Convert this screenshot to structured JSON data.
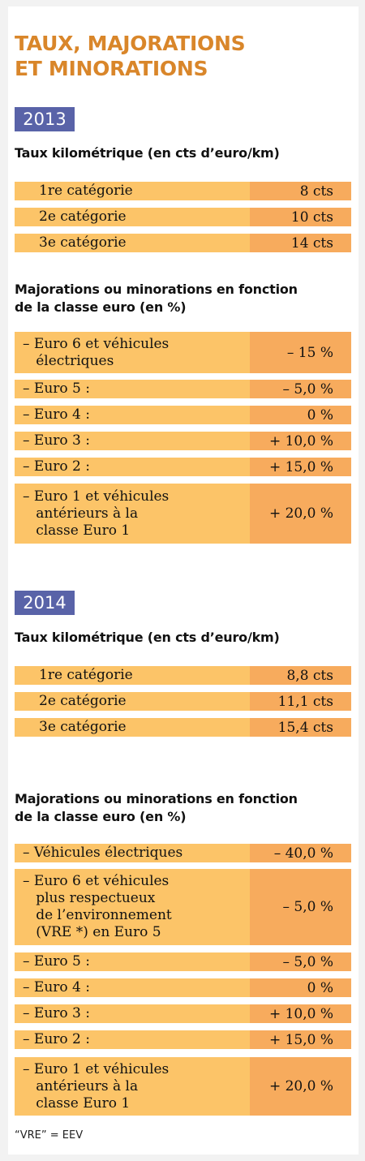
{
  "title": "TAUX, MAJORATIONS\nET MINORATIONS",
  "sections": [
    {
      "year": "2013",
      "rate_heading": "Taux kilométrique (en cts d’euro/km)",
      "rates": [
        {
          "label": "1re catégorie",
          "value": "8 cts"
        },
        {
          "label": "2e catégorie",
          "value": "10 cts"
        },
        {
          "label": "3e catégorie",
          "value": "14 cts"
        }
      ],
      "class_heading": "Majorations ou minorations en fonction\nde la classe euro (en %)",
      "classes": [
        {
          "label": "– Euro 6 et véhicules\n   électriques",
          "value": "– 15 %"
        },
        {
          "label": "– Euro 5 :",
          "value": "– 5,0 %"
        },
        {
          "label": "– Euro 4 :",
          "value": "0 %"
        },
        {
          "label": "– Euro 3 :",
          "value": "+ 10,0 %"
        },
        {
          "label": "– Euro 2 :",
          "value": "+ 15,0 %"
        },
        {
          "label": "– Euro 1 et véhicules\n   antérieurs à la\n   classe Euro 1",
          "value": "+ 20,0 %"
        }
      ]
    },
    {
      "year": "2014",
      "rate_heading": "Taux kilométrique (en cts d’euro/km)",
      "rates": [
        {
          "label": "1re catégorie",
          "value": "8,8 cts"
        },
        {
          "label": "2e catégorie",
          "value": "11,1 cts"
        },
        {
          "label": "3e catégorie",
          "value": "15,4 cts"
        }
      ],
      "class_heading": "Majorations ou minorations en fonction\nde la classe euro (en %)",
      "classes": [
        {
          "label": "– Véhicules électriques",
          "value": "– 40,0 %"
        },
        {
          "label": "– Euro 6 et véhicules\n   plus respectueux\n   de l’environnement\n   (VRE *) en Euro 5",
          "value": "– 5,0 %"
        },
        {
          "label": "– Euro 5 :",
          "value": "– 5,0 %"
        },
        {
          "label": "– Euro 4 :",
          "value": "0 %"
        },
        {
          "label": "– Euro 3 :",
          "value": "+ 10,0 %"
        },
        {
          "label": "– Euro 2 :",
          "value": "+ 15,0 %"
        },
        {
          "label": "– Euro 1 et véhicules\n   antérieurs à la\n   classe Euro 1",
          "value": "+ 20,0 %"
        }
      ]
    }
  ],
  "footnote": "“VRE” = EEV"
}
